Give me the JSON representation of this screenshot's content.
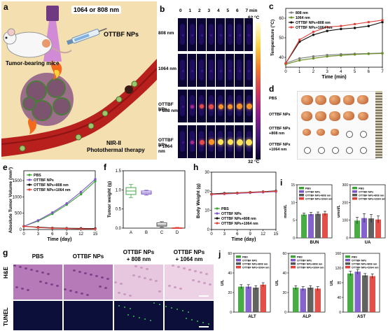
{
  "panels": {
    "a": {
      "letter": "a",
      "laser_label": "1064 or 808 nm",
      "mouse_label": "Tumor-bearing mice",
      "np_label": "OTTBF NPs",
      "therapy_line1": "NIR-II",
      "therapy_line2": "Photothermal therapy",
      "colors": {
        "bg": "#f3dfb0",
        "vessel": "#b8201e",
        "laser": "#b25ad2"
      }
    },
    "b": {
      "letter": "b",
      "time_labels": [
        "0",
        "1",
        "2",
        "3",
        "4",
        "5",
        "6",
        "7 min"
      ],
      "row_labels": [
        [
          "808 nm"
        ],
        [
          "1064 nm"
        ],
        [
          "OTTBF NPs",
          "+ 808 nm"
        ],
        [
          "OTTBF NPs",
          "+ 1064 nm"
        ]
      ],
      "intensity_levels": [
        [
          0.02,
          0.03,
          0.04,
          0.05,
          0.05,
          0.05,
          0.06,
          0.06
        ],
        [
          0.02,
          0.03,
          0.04,
          0.05,
          0.05,
          0.06,
          0.06,
          0.07
        ],
        [
          0.03,
          0.25,
          0.45,
          0.6,
          0.68,
          0.72,
          0.75,
          0.78
        ],
        [
          0.03,
          0.35,
          0.6,
          0.75,
          0.85,
          0.9,
          0.93,
          0.95
        ]
      ],
      "scale_max": "62 °C",
      "scale_min": "32 °C"
    },
    "c": {
      "letter": "c",
      "chart_data": {
        "type": "line",
        "xlabel": "Time (min)",
        "ylabel": "Temperature (°C)",
        "x": [
          0,
          1,
          2,
          3,
          4,
          5,
          6,
          7
        ],
        "xlim": [
          0,
          7
        ],
        "ylim": [
          35,
          65
        ],
        "yticks": [
          40,
          50,
          60
        ],
        "series": [
          {
            "name": "808 nm",
            "color": "#7f7f7f",
            "values": [
              37,
              39.5,
              40.5,
              41.2,
              41.6,
              41.8,
              42,
              42.2
            ]
          },
          {
            "name": "1064 nm",
            "color": "#6a8e23",
            "values": [
              36.5,
              38.5,
              39.5,
              40.5,
              41,
              41.5,
              41.8,
              42
            ]
          },
          {
            "name": "OTTBF NPs+808 nm",
            "color": "#111111",
            "values": [
              37,
              48,
              51.5,
              53.5,
              54.5,
              55,
              56,
              58
            ]
          },
          {
            "name": "OTTBF NPs+1064 nm",
            "color": "#e0413a",
            "values": [
              37,
              49,
              53,
              55.5,
              56,
              57,
              58,
              59
            ]
          }
        ]
      }
    },
    "d": {
      "letter": "d",
      "row_labels": [
        [
          "PBS"
        ],
        [
          "OTTBF NPs"
        ],
        [
          "OTTBF NPs",
          "+808 nm"
        ],
        [
          "OTTBF NPs",
          "+1064 nm"
        ]
      ],
      "tumor_sizes": [
        [
          0.9,
          0.85,
          0.8,
          0.78,
          0.72
        ],
        [
          0.85,
          0.8,
          0.78,
          0.75,
          0.7
        ],
        [
          0.45,
          0.4,
          0.35,
          0,
          0
        ],
        [
          0,
          0,
          0,
          0,
          0
        ]
      ]
    },
    "e": {
      "letter": "e",
      "chart_data": {
        "type": "line",
        "xlabel": "Time (day)",
        "ylabel": "Absolute Tumor Volume (mm³)",
        "x": [
          0,
          3,
          6,
          9,
          12,
          15
        ],
        "xticks": [
          "0",
          "3",
          "6",
          "9",
          "12",
          "15"
        ],
        "ylim": [
          0,
          1800
        ],
        "yticks": [
          0,
          500,
          1000,
          1500
        ],
        "series": [
          {
            "name": "PBS",
            "color": "#3aa535",
            "values": [
              100,
              260,
              480,
              760,
              1080,
              1480
            ]
          },
          {
            "name": "OTTBF NPs",
            "color": "#7b55c9",
            "values": [
              100,
              280,
              520,
              800,
              1150,
              1540
            ]
          },
          {
            "name": "OTTBF NPs+808 nm",
            "color": "#111111",
            "values": [
              100,
              70,
              50,
              40,
              35,
              30
            ]
          },
          {
            "name": "OTTBF NPs+1064 nm",
            "color": "#e0413a",
            "values": [
              100,
              60,
              40,
              30,
              20,
              15
            ]
          }
        ]
      }
    },
    "f": {
      "letter": "f",
      "chart_data": {
        "type": "box",
        "ylabel": "Tumor weight (g)",
        "ylim": [
          0,
          1.5
        ],
        "yticks": [
          "0.0",
          "0.5",
          "1.0",
          "1.5"
        ],
        "categories": [
          "A",
          "B",
          "C",
          "D"
        ],
        "boxes": [
          {
            "min": 0.8,
            "q1": 0.88,
            "median": 0.97,
            "q3": 1.06,
            "max": 1.14,
            "color": "#4aa84a"
          },
          {
            "min": 0.86,
            "q1": 0.89,
            "median": 0.92,
            "q3": 0.97,
            "max": 0.99,
            "color": "#7b55c9"
          },
          {
            "min": 0.02,
            "q1": 0.05,
            "median": 0.08,
            "q3": 0.14,
            "max": 0.17,
            "color": "#555555"
          },
          {
            "min": 0.0,
            "q1": 0.0,
            "median": 0.0,
            "q3": 0.01,
            "max": 0.02,
            "color": "#e0413a"
          }
        ]
      }
    },
    "h": {
      "letter": "h",
      "chart_data": {
        "type": "line",
        "xlabel": "Time (day)",
        "ylabel": "Body Weight (g)",
        "x": [
          0,
          3,
          6,
          9,
          12,
          15
        ],
        "xticks": [
          "0",
          "3",
          "6",
          "9",
          "12",
          "15"
        ],
        "ylim": [
          0,
          30
        ],
        "yticks": [
          0,
          10,
          20,
          30
        ],
        "series": [
          {
            "name": "PBS",
            "color": "#3aa535",
            "values": [
              18.5,
              18.8,
              19,
              19.3,
              19.6,
              19.9
            ]
          },
          {
            "name": "OTTBF NPs",
            "color": "#7b55c9",
            "values": [
              18.3,
              18.6,
              18.9,
              19.2,
              19.5,
              19.8
            ]
          },
          {
            "name": "OTTBF NPs+808 nm",
            "color": "#111111",
            "values": [
              18.6,
              19,
              19.2,
              19.5,
              19.8,
              20.2
            ]
          },
          {
            "name": "OTTBF NPs+1064 nm",
            "color": "#e0413a",
            "values": [
              18.4,
              18.7,
              19.1,
              19.4,
              19.7,
              20.0
            ]
          }
        ]
      }
    },
    "g": {
      "letter": "g",
      "col_labels": [
        [
          "PBS"
        ],
        [
          "OTTBF NPs"
        ],
        [
          "OTTBF NPs",
          "+ 808 nm"
        ],
        [
          "OTTBF NPs",
          "+ 1064 nm"
        ]
      ],
      "row_labels": [
        "H&E",
        "TUNEL"
      ]
    },
    "i": {
      "letter": "i",
      "legend": [
        "PBS",
        "OTTBF NPs",
        "OTTBF NPs+808 nm",
        "OTTBF NPs+1064 nm"
      ],
      "colors": [
        "#3aa535",
        "#7b55c9",
        "#555555",
        "#e0413a"
      ],
      "charts": [
        {
          "xlabel": "BUN",
          "ylabel": "mmol/L",
          "ylim": [
            0,
            15
          ],
          "yticks": [
            "0",
            "5",
            "10",
            "15"
          ],
          "values": [
            6.6,
            6.7,
            6.8,
            6.9
          ],
          "errors": [
            0.4,
            0.5,
            0.5,
            0.6
          ]
        },
        {
          "xlabel": "UA",
          "ylabel": "umol/L",
          "ylim": [
            0,
            300
          ],
          "yticks": [
            "0",
            "100",
            "200",
            "300"
          ],
          "values": [
            98,
            112,
            110,
            104
          ],
          "errors": [
            18,
            25,
            22,
            20
          ]
        }
      ]
    },
    "j": {
      "letter": "j",
      "legend": [
        "PBS",
        "OTTBF NPs",
        "OTTBF NPs+808 nm",
        "OTTBF NPs+1064 nm"
      ],
      "colors": [
        "#3aa535",
        "#7b55c9",
        "#555555",
        "#e0413a"
      ],
      "charts": [
        {
          "xlabel": "ALT",
          "ylabel": "U/L",
          "ylim": [
            0,
            60
          ],
          "yticks": [
            "0",
            "20",
            "40",
            "60"
          ],
          "values": [
            26,
            26,
            25,
            28
          ],
          "errors": [
            2,
            2,
            2,
            2
          ]
        },
        {
          "xlabel": "ALP",
          "ylabel": "U/L",
          "ylim": [
            0,
            60
          ],
          "yticks": [
            "0",
            "20",
            "40",
            "60"
          ],
          "values": [
            25,
            24,
            25,
            24
          ],
          "errors": [
            2,
            2,
            2,
            2
          ]
        },
        {
          "xlabel": "AST",
          "ylabel": "U/L",
          "ylim": [
            0,
            160
          ],
          "yticks": [
            "0",
            "40",
            "80",
            "120",
            "160"
          ],
          "values": [
            105,
            110,
            100,
            98
          ],
          "errors": [
            6,
            6,
            5,
            6
          ]
        }
      ]
    }
  }
}
